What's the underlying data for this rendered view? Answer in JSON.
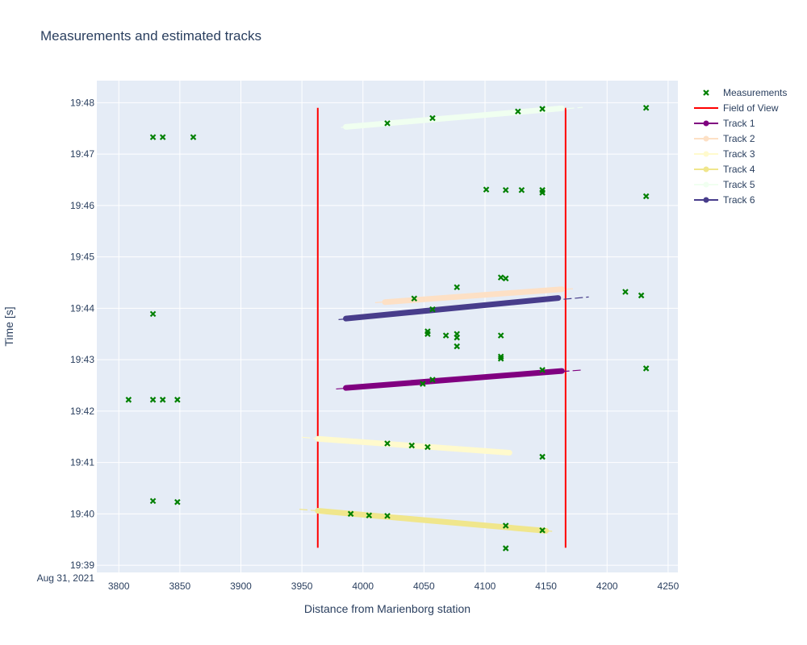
{
  "chart_data": {
    "type": "scatter",
    "title": "Measurements and estimated tracks",
    "xlabel": "Distance from Marienborg station",
    "ylabel": "Time [s]",
    "xlim": [
      3782,
      4258
    ],
    "ylim_minutes": [
      38.86,
      48.43
    ],
    "y_axis_date_label": "Aug 31, 2021",
    "x_ticks": [
      3800,
      3850,
      3900,
      3950,
      4000,
      4050,
      4100,
      4150,
      4200,
      4250
    ],
    "y_ticks": [
      {
        "value": 39,
        "label": "19:39"
      },
      {
        "value": 40,
        "label": "19:40"
      },
      {
        "value": 41,
        "label": "19:41"
      },
      {
        "value": 42,
        "label": "19:42"
      },
      {
        "value": 43,
        "label": "19:43"
      },
      {
        "value": 44,
        "label": "19:44"
      },
      {
        "value": 45,
        "label": "19:45"
      },
      {
        "value": 46,
        "label": "19:46"
      },
      {
        "value": 47,
        "label": "19:47"
      },
      {
        "value": 48,
        "label": "19:48"
      }
    ],
    "grid": true,
    "legend_position": "top-right",
    "background_color": "#e5ecf6",
    "series": [
      {
        "name": "Measurements",
        "kind": "markers",
        "color": "#008000",
        "points": [
          [
            3808,
            42.22
          ],
          [
            3828,
            42.22
          ],
          [
            3836,
            42.22
          ],
          [
            3848,
            42.22
          ],
          [
            3828,
            40.25
          ],
          [
            3848,
            40.23
          ],
          [
            3828,
            43.89
          ],
          [
            3828,
            47.33
          ],
          [
            3836,
            47.33
          ],
          [
            3861,
            47.33
          ],
          [
            4101,
            46.31
          ],
          [
            4117,
            46.3
          ],
          [
            4130,
            46.3
          ],
          [
            4147,
            46.3
          ],
          [
            4147,
            46.25
          ],
          [
            4232,
            47.9
          ],
          [
            4232,
            46.18
          ],
          [
            4232,
            42.83
          ],
          [
            4215,
            44.32
          ],
          [
            4228,
            44.25
          ],
          [
            4077,
            44.41
          ],
          [
            4113,
            44.6
          ],
          [
            4117,
            44.58
          ],
          [
            4057,
            43.98
          ],
          [
            4042,
            44.19
          ],
          [
            4053,
            43.55
          ],
          [
            4053,
            43.5
          ],
          [
            4068,
            43.47
          ],
          [
            4077,
            43.5
          ],
          [
            4077,
            43.43
          ],
          [
            4077,
            43.26
          ],
          [
            4113,
            43.47
          ],
          [
            4113,
            43.06
          ],
          [
            4113,
            43.02
          ],
          [
            4147,
            42.8
          ],
          [
            4049,
            42.53
          ],
          [
            4057,
            42.61
          ],
          [
            4147,
            41.11
          ],
          [
            4117,
            39.33
          ],
          [
            4117,
            39.77
          ],
          [
            4147,
            39.68
          ],
          [
            3990,
            40.0
          ],
          [
            4005,
            39.97
          ],
          [
            4020,
            39.96
          ],
          [
            4053,
            41.3
          ],
          [
            4020,
            41.37
          ],
          [
            4040,
            41.33
          ],
          [
            4020,
            47.6
          ],
          [
            4057,
            47.7
          ],
          [
            4127,
            47.83
          ],
          [
            4147,
            47.88
          ]
        ]
      },
      {
        "name": "Field of View",
        "kind": "lines",
        "color": "#ff0000",
        "segments": [
          [
            [
              3963,
              39.34
            ],
            [
              3963,
              47.9
            ]
          ],
          [
            [
              4166,
              39.34
            ],
            [
              4166,
              47.9
            ]
          ]
        ]
      },
      {
        "name": "Track 1",
        "kind": "track",
        "color": "#800080",
        "thick": [
          [
            3986,
            42.45
          ],
          [
            4163,
            42.78
          ]
        ],
        "thin": [
          [
            3978,
            42.43
          ],
          [
            4180,
            42.8
          ]
        ]
      },
      {
        "name": "Track 2",
        "kind": "track",
        "color": "#fde0c5",
        "thick": [
          [
            4018,
            44.12
          ],
          [
            4163,
            44.37
          ]
        ],
        "thin": [
          [
            4010,
            44.11
          ],
          [
            4172,
            44.38
          ]
        ]
      },
      {
        "name": "Track 3",
        "kind": "track",
        "color": "#fffacd",
        "thick": [
          [
            3963,
            41.46
          ],
          [
            4120,
            41.19
          ]
        ],
        "thin": [
          [
            3950,
            41.49
          ],
          [
            4122,
            41.18
          ]
        ]
      },
      {
        "name": "Track 4",
        "kind": "track",
        "color": "#f0e68c",
        "thick": [
          [
            3963,
            40.06
          ],
          [
            4150,
            39.67
          ]
        ],
        "thin": [
          [
            3948,
            40.09
          ],
          [
            4155,
            39.66
          ]
        ]
      },
      {
        "name": "Track 5",
        "kind": "track",
        "color": "#f0fff0",
        "thick": [
          [
            3986,
            47.53
          ],
          [
            4163,
            47.89
          ]
        ],
        "thin": [
          [
            3982,
            47.52
          ],
          [
            4180,
            47.91
          ]
        ]
      },
      {
        "name": "Track 6",
        "kind": "track",
        "color": "#483d8b",
        "thick": [
          [
            3986,
            43.8
          ],
          [
            4160,
            44.2
          ]
        ],
        "thin": [
          [
            3980,
            43.78
          ],
          [
            4185,
            44.22
          ]
        ]
      }
    ]
  }
}
